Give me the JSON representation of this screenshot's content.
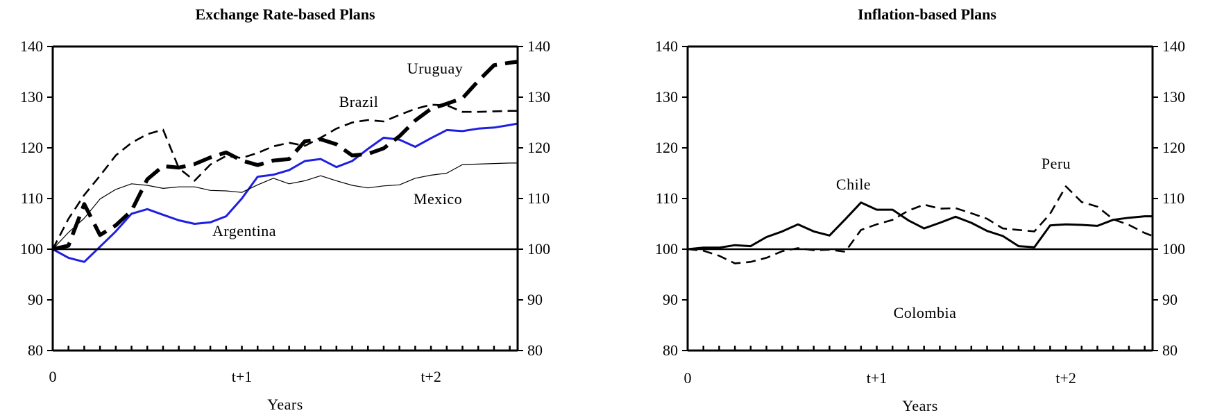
{
  "chart_data": [
    {
      "type": "line",
      "title": "Exchange Rate-based Plans",
      "xlabel": "Years",
      "ylabel": "",
      "ylim": [
        80,
        140
      ],
      "yticks": [
        80,
        90,
        100,
        110,
        120,
        130,
        140
      ],
      "xticklabels": [
        {
          "x": 0,
          "label": "0"
        },
        {
          "x": 12,
          "label": "t+1"
        },
        {
          "x": 24,
          "label": "t+2"
        }
      ],
      "xlim": [
        0,
        29.5
      ],
      "reference_line": 100,
      "grid": false,
      "annotations": [
        {
          "text": "Uruguay",
          "series": "Uruguay"
        },
        {
          "text": "Brazil",
          "series": "Brazil"
        },
        {
          "text": "Mexico",
          "series": "Mexico"
        },
        {
          "text": "Argentina",
          "series": "Argentina"
        }
      ],
      "series": [
        {
          "name": "Argentina",
          "color": "#1f1fe0",
          "style": "solid-blue",
          "x": [
            0,
            1,
            2,
            3,
            4,
            5,
            6,
            7,
            8,
            9,
            10,
            11,
            12,
            13,
            14,
            15,
            16,
            17,
            18,
            19,
            20,
            21,
            22,
            23,
            24,
            25,
            26,
            27,
            28,
            29,
            29.5
          ],
          "values": [
            100,
            98.3,
            97.5,
            100.5,
            103.5,
            107,
            107.9,
            106.8,
            105.7,
            105,
            105.3,
            106.5,
            110,
            114.3,
            114.7,
            115.6,
            117.4,
            117.8,
            116.2,
            117.4,
            119.8,
            122,
            121.6,
            120.2,
            121.9,
            123.5,
            123.3,
            123.8,
            124,
            124.5,
            124.8
          ]
        },
        {
          "name": "Brazil",
          "color": "#000000",
          "style": "dashed-medium",
          "x": [
            0,
            1,
            2,
            3,
            4,
            5,
            6,
            7,
            8,
            9,
            10,
            11,
            12,
            13,
            14,
            15,
            16,
            17,
            18,
            19,
            20,
            21,
            22,
            23,
            24,
            25,
            26,
            27,
            28,
            29,
            29.5
          ],
          "values": [
            100,
            106,
            110.7,
            114.5,
            118.5,
            121,
            122.7,
            123.6,
            116,
            113.5,
            116.7,
            118.4,
            118,
            119,
            120.3,
            121,
            120.4,
            122,
            123.8,
            125,
            125.5,
            125.2,
            126.5,
            127.7,
            128.5,
            128.4,
            127.1,
            127.1,
            127.2,
            127.3,
            127.3
          ]
        },
        {
          "name": "Uruguay",
          "color": "#000000",
          "style": "dashed-heavy",
          "x": [
            0,
            1,
            2,
            3,
            4,
            5,
            6,
            7,
            8,
            9,
            10,
            11,
            12,
            13,
            14,
            15,
            16,
            17,
            18,
            19,
            20,
            21,
            22,
            23,
            24,
            25,
            26,
            27,
            28,
            29,
            29.5
          ],
          "values": [
            100,
            100.7,
            108.9,
            102.8,
            104.7,
            107.6,
            113.8,
            116.4,
            116.1,
            116.8,
            118.1,
            119.1,
            117.5,
            116.6,
            117.5,
            117.8,
            121.3,
            121.7,
            120.7,
            118.5,
            118.8,
            119.9,
            122.3,
            125.4,
            127.7,
            128.7,
            129.8,
            133.2,
            136.3,
            136.8,
            137
          ]
        },
        {
          "name": "Mexico",
          "color": "#000000",
          "style": "solid-thin",
          "x": [
            0,
            1,
            2,
            3,
            4,
            5,
            6,
            7,
            8,
            9,
            10,
            11,
            12,
            13,
            14,
            15,
            16,
            17,
            18,
            19,
            20,
            21,
            22,
            23,
            24,
            25,
            26,
            27,
            28,
            29,
            29.5
          ],
          "values": [
            100,
            103.3,
            106.1,
            109.9,
            111.8,
            112.9,
            112.6,
            112,
            112.3,
            112.3,
            111.6,
            111.5,
            111.2,
            112.7,
            114,
            112.9,
            113.5,
            114.5,
            113.5,
            112.6,
            112.1,
            112.5,
            112.7,
            114,
            114.6,
            115,
            116.7,
            116.8,
            116.9,
            117,
            117
          ]
        }
      ]
    },
    {
      "type": "line",
      "title": "Inflation-based Plans",
      "xlabel": "Years",
      "ylabel": "",
      "ylim": [
        80,
        140
      ],
      "yticks": [
        80,
        90,
        100,
        110,
        120,
        130,
        140
      ],
      "xticklabels": [
        {
          "x": 0,
          "label": "0"
        },
        {
          "x": 12,
          "label": "t+1"
        },
        {
          "x": 24,
          "label": "t+2"
        }
      ],
      "xlim": [
        0,
        29.5
      ],
      "reference_line": 100,
      "grid": false,
      "annotations": [
        {
          "text": "Chile",
          "series": "Chile"
        },
        {
          "text": "Peru",
          "series": "Peru"
        },
        {
          "text": "Colombia",
          "series": "Colombia"
        }
      ],
      "series": [
        {
          "name": "Chile",
          "color": "#000000",
          "style": "solid-medium",
          "x": [
            0,
            1,
            2,
            3,
            4,
            5,
            6,
            7,
            8,
            9,
            10,
            11,
            12,
            13,
            14,
            15,
            16,
            17,
            18,
            19,
            20,
            21,
            22,
            23,
            24,
            25,
            26,
            27,
            28,
            29,
            29.5
          ],
          "values": [
            100,
            100.3,
            100.3,
            100.8,
            100.6,
            102.4,
            103.5,
            104.9,
            103.5,
            102.7,
            105.9,
            109.2,
            107.8,
            107.8,
            105.7,
            104.1,
            105.2,
            106.4,
            105.2,
            103.6,
            102.6,
            100.6,
            100.4,
            104.7,
            104.9,
            104.8,
            104.6,
            105.8,
            106.2,
            106.5,
            106.5
          ]
        },
        {
          "name": "Peru",
          "color": "#000000",
          "style": "dashed-medium",
          "x": [
            0,
            1,
            2,
            3,
            4,
            5,
            6,
            7,
            8,
            9,
            10,
            11,
            12,
            13,
            14,
            15,
            16,
            17,
            18,
            19,
            20,
            21,
            22,
            23,
            24,
            25,
            26,
            27,
            28,
            29,
            29.5
          ],
          "values": [
            100,
            99.7,
            98.7,
            97.2,
            97.5,
            98.3,
            99.6,
            100.2,
            99.8,
            99.9,
            99.5,
            103.8,
            104.9,
            105.8,
            107.6,
            108.8,
            108,
            108.1,
            107.1,
            106,
            104.1,
            103.8,
            103.5,
            107,
            112.4,
            109.3,
            108.4,
            105.9,
            104.8,
            103.2,
            102.6
          ]
        },
        {
          "name": "Colombia",
          "color": "#000000",
          "style": "none",
          "x": [],
          "values": []
        }
      ]
    }
  ]
}
